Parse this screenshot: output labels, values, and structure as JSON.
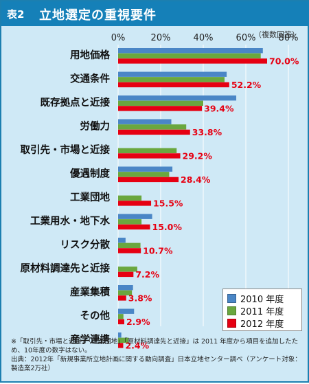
{
  "header": {
    "tag": "表2",
    "title": "立地選定の重視要件",
    "note": "（複数回答）"
  },
  "colors": {
    "y2010": "#4a86c6",
    "y2011": "#6aa73e",
    "y2012": "#e60012",
    "label": "#e60012"
  },
  "legend": [
    {
      "key": "y2010",
      "label": "2010 年度"
    },
    {
      "key": "y2011",
      "label": "2011 年度"
    },
    {
      "key": "y2012",
      "label": "2012 年度"
    }
  ],
  "footnote": {
    "line1": "※「取引先・市場と近接」「工業団地」「原材料調達先と近接」は 2011 年度から項目を追加したため、10年度の数字はない。",
    "line2": "出典：2012年「新規事業所立地計画に関する動向調査」日本立地センター調べ（アンケート対象：製造業2万社）"
  },
  "chart_data": {
    "type": "bar",
    "orientation": "horizontal",
    "xlim": [
      0,
      80
    ],
    "ticks": [
      "0%",
      "20%",
      "40%",
      "60%",
      "80%"
    ],
    "tick_values": [
      0,
      20,
      40,
      60,
      80
    ],
    "categories": [
      "用地価格",
      "交通条件",
      "既存拠点と近接",
      "労働力",
      "取引先・市場と近接",
      "優遇制度",
      "工業団地",
      "工業用水・地下水",
      "リスク分散",
      "原材料調達先と近接",
      "産業集積",
      "その他",
      "産学連携"
    ],
    "value_labels": [
      "70.0%",
      "52.2%",
      "39.4%",
      "33.8%",
      "29.2%",
      "28.4%",
      "15.5%",
      "15.0%",
      "10.7%",
      "7.2%",
      "3.8%",
      "2.9%",
      "2.4%"
    ],
    "series": [
      {
        "name": "2010 年度",
        "values": [
          68.0,
          51.0,
          55.5,
          25.0,
          null,
          25.5,
          null,
          16.0,
          3.5,
          null,
          7.0,
          7.5,
          1.5
        ]
      },
      {
        "name": "2011 年度",
        "values": [
          67.0,
          50.0,
          40.0,
          32.0,
          27.5,
          24.0,
          11.0,
          11.0,
          10.5,
          9.0,
          6.5,
          2.5,
          5.0
        ]
      },
      {
        "name": "2012 年度",
        "values": [
          70.0,
          52.2,
          39.4,
          33.8,
          29.2,
          28.4,
          15.5,
          15.0,
          10.7,
          7.2,
          3.8,
          2.9,
          2.4
        ]
      }
    ]
  }
}
